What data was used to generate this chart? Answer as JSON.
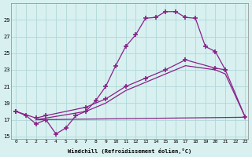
{
  "xlabel": "Windchill (Refroidissement éolien,°C)",
  "bg_color": "#d8f0f0",
  "grid_color": "#b0d8d8",
  "line_color": "#882288",
  "xlim": [
    -0.5,
    23.3
  ],
  "ylim": [
    14.7,
    31.0
  ],
  "yticks": [
    15,
    17,
    19,
    21,
    23,
    25,
    27,
    29
  ],
  "xticks": [
    0,
    1,
    2,
    3,
    4,
    5,
    6,
    7,
    8,
    9,
    10,
    11,
    12,
    13,
    14,
    15,
    16,
    17,
    18,
    19,
    20,
    21,
    22,
    23
  ],
  "series_main": {
    "x": [
      0,
      1,
      2,
      3,
      4,
      5,
      6,
      7,
      8,
      9,
      10,
      11,
      12,
      13,
      14,
      15,
      16,
      17,
      18,
      19,
      20,
      21
    ],
    "y": [
      18.0,
      17.5,
      16.5,
      17.0,
      15.3,
      16.0,
      17.5,
      18.0,
      19.3,
      21.0,
      23.5,
      25.8,
      27.2,
      29.2,
      29.3,
      30.0,
      30.0,
      29.3,
      29.2,
      25.8,
      25.2,
      23.0
    ]
  },
  "series_flat": {
    "x": [
      2,
      23
    ],
    "y": [
      17.0,
      17.3
    ]
  },
  "series_diag1": {
    "x": [
      0,
      2,
      3,
      7,
      9,
      11,
      13,
      15,
      17,
      20,
      21,
      23
    ],
    "y": [
      18.0,
      17.2,
      17.5,
      18.5,
      19.5,
      21.0,
      22.0,
      23.0,
      24.2,
      23.2,
      23.0,
      17.3
    ]
  },
  "series_diag2": {
    "x": [
      2,
      3,
      7,
      9,
      11,
      13,
      15,
      17,
      20,
      21,
      23
    ],
    "y": [
      17.0,
      17.2,
      18.0,
      19.0,
      20.5,
      21.5,
      22.5,
      23.5,
      23.0,
      22.5,
      17.3
    ]
  }
}
